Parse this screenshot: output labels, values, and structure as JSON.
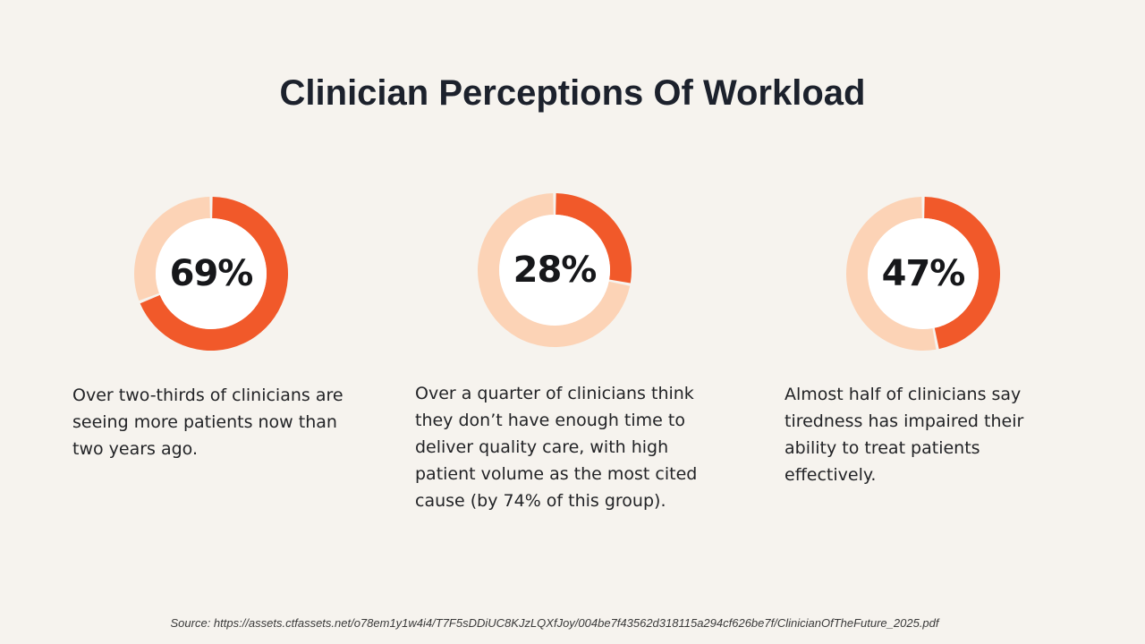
{
  "chart_data": {
    "type": "pie",
    "title": "Clinician Perceptions Of Workload",
    "colors": {
      "value": "#f1592a",
      "remainder": "#fcd3b6",
      "center": "#ffffff",
      "gap": "#f6f3ee"
    },
    "items": [
      {
        "value": 69,
        "label": "69%",
        "caption": "Over two-thirds of clinicians are seeing more patients now than two years ago."
      },
      {
        "value": 28,
        "label": "28%",
        "caption": "Over a quarter of clinicians think they don’t have enough time to deliver quality care, with high patient volume as the most cited cause (by 74% of this group)."
      },
      {
        "value": 47,
        "label": "47%",
        "caption": "Almost half of clinicians say tiredness has impaired their ability to treat patients effectively."
      }
    ],
    "source": "Source: https://assets.ctfassets.net/o78em1y1w4i4/T7F5sDDiUC8KJzLQXfJoy/004be7f43562d318115a294cf626be7f/ClinicianOfTheFuture_2025.pdf"
  }
}
